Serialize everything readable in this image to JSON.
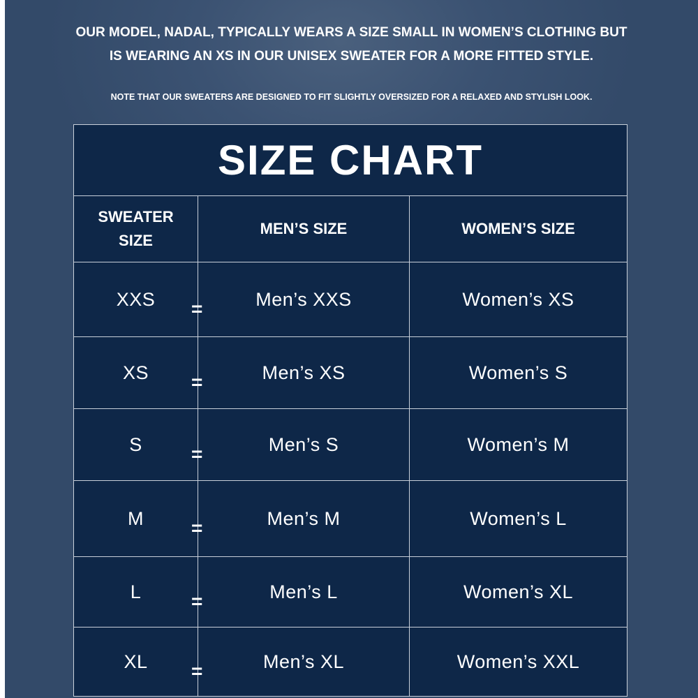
{
  "intro": {
    "main": "OUR MODEL, NADAL, TYPICALLY WEARS A SIZE SMALL IN WOMEN’S CLOTHING BUT IS WEARING AN XS IN OUR UNISEX SWEATER FOR A MORE FITTED STYLE.",
    "note": "NOTE THAT OUR SWEATERS ARE DESIGNED TO FIT SLIGHTLY OVERSIZED FOR A RELAXED AND STYLISH LOOK."
  },
  "chart": {
    "title": "SIZE CHART",
    "headers": [
      "SWEATER SIZE",
      "MEN’S SIZE",
      "WOMEN’S SIZE"
    ],
    "equals": "=",
    "rows": [
      [
        "XXS",
        "Men’s XXS",
        "Women’s XS"
      ],
      [
        "XS",
        "Men’s XS",
        "Women’s S"
      ],
      [
        "S",
        "Men’s S",
        "Women’s M"
      ],
      [
        "M",
        "Men’s M",
        "Women’s L"
      ],
      [
        "L",
        "Men’s L",
        "Women’s XL"
      ],
      [
        "XL",
        "Men’s XL",
        "Women’s XXL"
      ]
    ]
  },
  "colors": {
    "background": "#344a68",
    "table": "#0e2748",
    "text": "#ffffff"
  }
}
